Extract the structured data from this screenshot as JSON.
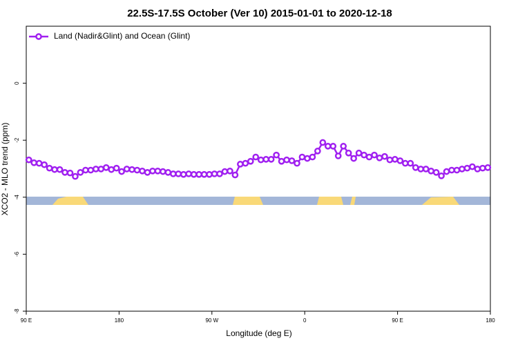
{
  "chart_data": {
    "type": "line",
    "title": "22.5S-17.5S October (Ver 10)   2015-01-01 to 2020-12-18",
    "x_label": "Longitude (deg E)",
    "y_label": "XCO2 - MLO trend (ppm)",
    "x": [
      92.5,
      97.5,
      102.5,
      107.5,
      112.5,
      117.5,
      122.5,
      127.5,
      132.5,
      137.5,
      142.5,
      147.5,
      152.5,
      157.5,
      162.5,
      167.5,
      172.5,
      177.5,
      182.5,
      187.5,
      192.5,
      197.5,
      202.5,
      207.5,
      212.5,
      217.5,
      222.5,
      227.5,
      232.5,
      237.5,
      242.5,
      247.5,
      252.5,
      257.5,
      262.5,
      267.5,
      272.5,
      277.5,
      282.5,
      287.5,
      292.5,
      297.5,
      302.5,
      307.5,
      312.5,
      317.5,
      322.5,
      327.5,
      332.5,
      337.5,
      342.5,
      347.5,
      352.5,
      357.5,
      362.5,
      367.5,
      372.5,
      377.5,
      382.5,
      387.5,
      392.5,
      397.5,
      402.5,
      407.5,
      412.5,
      417.5,
      422.5,
      427.5,
      432.5,
      437.5,
      442.5,
      447.5,
      452.5,
      457.5,
      462.5,
      467.5,
      472.5,
      477.5,
      482.5,
      487.5,
      492.5,
      497.5,
      502.5,
      507.5,
      512.5,
      517.5,
      522.5,
      527.5,
      532.5,
      537.5
    ],
    "series": [
      {
        "name": "Land (Nadir&Glint) and Ocean (Glint)",
        "color": "#a020f0",
        "values": [
          -2.69,
          -2.79,
          -2.81,
          -2.86,
          -2.98,
          -3.03,
          -3.03,
          -3.13,
          -3.15,
          -3.27,
          -3.13,
          -3.05,
          -3.05,
          -3.01,
          -3.01,
          -2.96,
          -3.03,
          -2.98,
          -3.1,
          -3.01,
          -3.03,
          -3.05,
          -3.08,
          -3.13,
          -3.08,
          -3.08,
          -3.1,
          -3.13,
          -3.18,
          -3.18,
          -3.2,
          -3.18,
          -3.2,
          -3.2,
          -3.2,
          -3.2,
          -3.18,
          -3.18,
          -3.1,
          -3.08,
          -3.22,
          -2.84,
          -2.81,
          -2.74,
          -2.59,
          -2.69,
          -2.67,
          -2.67,
          -2.52,
          -2.74,
          -2.69,
          -2.72,
          -2.81,
          -2.59,
          -2.64,
          -2.59,
          -2.38,
          -2.08,
          -2.21,
          -2.21,
          -2.55,
          -2.21,
          -2.45,
          -2.64,
          -2.45,
          -2.52,
          -2.59,
          -2.52,
          -2.62,
          -2.57,
          -2.69,
          -2.67,
          -2.72,
          -2.81,
          -2.81,
          -2.96,
          -3.01,
          -3.01,
          -3.08,
          -3.13,
          -3.25,
          -3.1,
          -3.05,
          -3.05,
          -3.01,
          -2.98,
          -2.93,
          -3.01,
          -2.98,
          -2.96
        ]
      }
    ],
    "xlim": [
      90,
      540
    ],
    "xticks": [
      {
        "value": 90,
        "label": "90 E"
      },
      180,
      {
        "value": 270,
        "label": "90 W"
      },
      {
        "value": 360,
        "label": "0"
      },
      {
        "value": 450,
        "label": "90 E"
      },
      {
        "value": 540,
        "label": "180"
      }
    ],
    "ylim": [
      -8,
      2
    ],
    "yticks": [
      -8,
      -6,
      -4,
      -2,
      0
    ],
    "legend": "upper left"
  }
}
